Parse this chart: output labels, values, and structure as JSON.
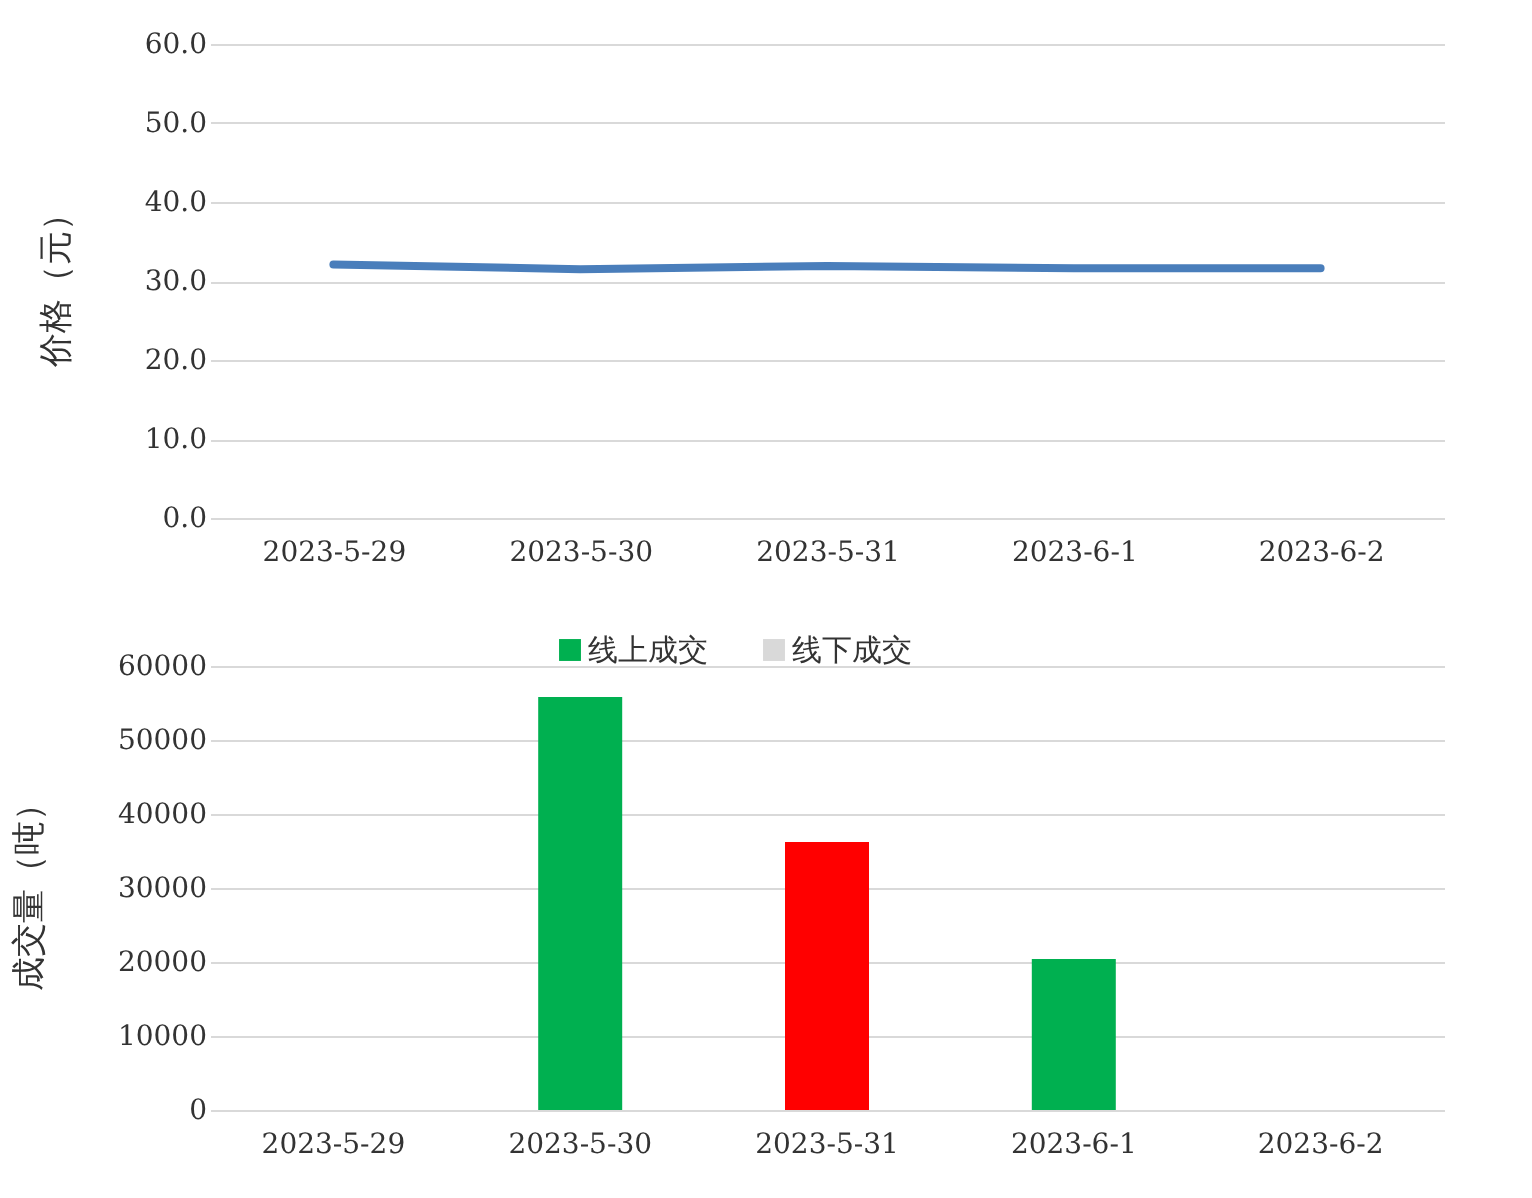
{
  "chart_data": [
    {
      "type": "line",
      "ylabel": "价格（元）",
      "categories": [
        "2023-5-29",
        "2023-5-30",
        "2023-5-31",
        "2023-6-1",
        "2023-6-2"
      ],
      "series": [
        {
          "color": "#4a7ebb",
          "values": [
            32.1,
            31.5,
            31.9,
            31.6,
            31.6
          ]
        }
      ],
      "ylim": [
        0,
        60
      ],
      "yticks": [
        {
          "value": 0,
          "label": "0.0"
        },
        {
          "value": 10,
          "label": "10.0"
        },
        {
          "value": 20,
          "label": "20.0"
        },
        {
          "value": 30,
          "label": "30.0"
        },
        {
          "value": 40,
          "label": "40.0"
        },
        {
          "value": 50,
          "label": "50.0"
        },
        {
          "value": 60,
          "label": "60.0"
        }
      ],
      "grid": "y",
      "marker": "none",
      "line_style": "solid",
      "legend": false
    },
    {
      "type": "bar",
      "ylabel": "成交量（吨）",
      "categories": [
        "2023-5-29",
        "2023-5-30",
        "2023-5-31",
        "2023-6-1",
        "2023-6-2"
      ],
      "series": [
        {
          "name": "线上成交",
          "color": "#00b050",
          "colors": [
            "#00b050",
            "#00b050",
            "#ff0000",
            "#00b050",
            "#00b050"
          ],
          "values": [
            null,
            55800,
            36200,
            20400,
            null
          ]
        },
        {
          "name": "线下成交",
          "color": "#d9d9d9",
          "values": [
            null,
            null,
            null,
            null,
            null
          ]
        }
      ],
      "ylim": [
        0,
        60000
      ],
      "yticks": [
        0,
        10000,
        20000,
        30000,
        40000,
        50000,
        60000
      ],
      "grid": "y",
      "legend": "top"
    }
  ]
}
